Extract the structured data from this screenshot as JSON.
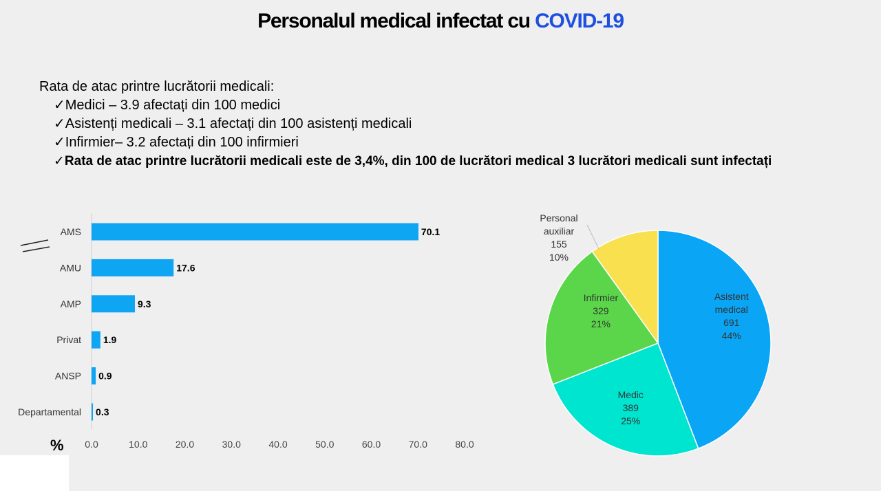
{
  "title": {
    "main": "Personalul medical infectat cu ",
    "accent": "COVID-19"
  },
  "subtitle": "Rata de atac printre lucrătorii medicali:",
  "checkmark": "✓",
  "bullets": [
    "Medici – 3.9 afectați din 100 medici",
    "Asistenți medicali – 3.1 afectați din 100 asistenți medicali",
    "Infirmier– 3.2 afectați din 100 infirmieri",
    "Rata de atac printre lucrătorii medicali este de 3,4%,  din 100 de lucrători medical  3 lucrători medicali sunt infectați"
  ],
  "chart_data": [
    {
      "type": "bar",
      "orientation": "horizontal",
      "categories": [
        "AMS",
        "AMU",
        "AMP",
        "Privat",
        "ANSP",
        "Departamental"
      ],
      "values": [
        70.1,
        17.6,
        9.3,
        1.9,
        0.9,
        0.3
      ],
      "value_labels": [
        "70.1",
        "17.6",
        "9.3",
        "1.9",
        "0.9",
        "0.3"
      ],
      "xlabel": "%",
      "xlim": [
        0,
        80
      ],
      "x_ticks": [
        "0.0",
        "10.0",
        "20.0",
        "30.0",
        "40.0",
        "50.0",
        "60.0",
        "70.0",
        "80.0"
      ],
      "color": "#0ea5f3"
    },
    {
      "type": "pie",
      "slices": [
        {
          "lines": [
            "Asistent",
            "medical"
          ],
          "value": "691",
          "percent": "44%",
          "v": 691,
          "color": "#0aa5f5"
        },
        {
          "lines": [
            "Medic"
          ],
          "value": "389",
          "percent": "25%",
          "v": 389,
          "color": "#00e5cf"
        },
        {
          "lines": [
            "Infirmier"
          ],
          "value": "329",
          "percent": "21%",
          "v": 329,
          "color": "#5bd64a"
        },
        {
          "lines": [
            "Personal",
            "auxiliar"
          ],
          "value": "155",
          "percent": "10%",
          "v": 155,
          "color": "#f8e04e"
        }
      ]
    }
  ]
}
